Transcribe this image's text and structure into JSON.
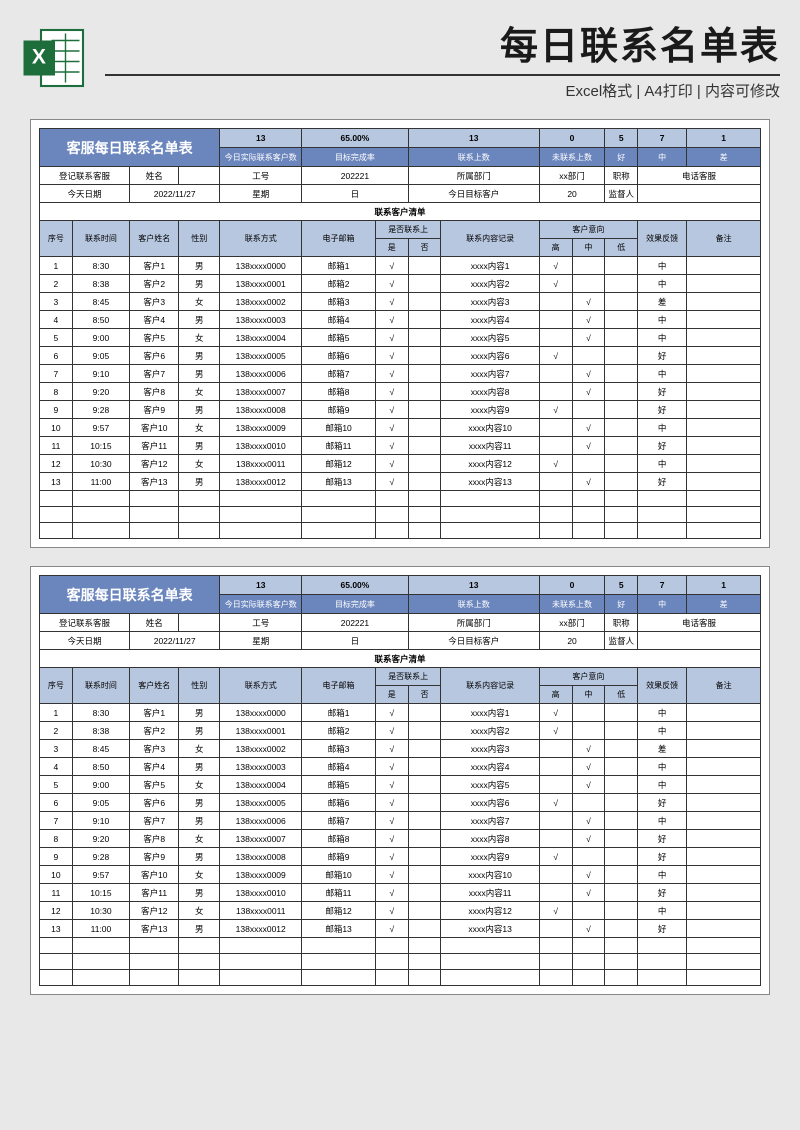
{
  "banner": {
    "title": "每日联系名单表",
    "subtitle": "Excel格式 | A4打印 | 内容可修改"
  },
  "colors": {
    "header_bg": "#6b85bd",
    "sub_bg": "#b8c7e0",
    "border": "#333333",
    "page_bg": "#e8e8e8"
  },
  "sheet": {
    "title": "客服每日联系名单表",
    "stats": {
      "actual_contact_val": "13",
      "actual_contact_lbl": "今日实际联系客户数",
      "completion_val": "65.00%",
      "completion_lbl": "目标完成率",
      "contacted_val": "13",
      "contacted_lbl": "联系上数",
      "not_contacted_val": "0",
      "not_contacted_lbl": "未联系上数",
      "good_val": "5",
      "good_lbl": "好",
      "mid_val": "7",
      "mid_lbl": "中",
      "bad_val": "1",
      "bad_lbl": "差"
    },
    "info": {
      "register_lbl": "登记联系客服",
      "name_lbl": "姓名",
      "name_val": "",
      "id_lbl": "工号",
      "id_val": "202221",
      "dept_lbl": "所属部门",
      "dept_val": "xx部门",
      "pos_lbl": "职称",
      "pos_val": "电话客服",
      "date_lbl": "今天日期",
      "date_val": "2022/11/27",
      "week_lbl": "星期",
      "week_val": "日",
      "target_lbl": "今日目标客户",
      "target_val": "20",
      "supervisor_lbl": "监督人",
      "supervisor_val": ""
    },
    "list_title": "联系客户清单",
    "columns": {
      "seq": "序号",
      "time": "联系时间",
      "cust": "客户姓名",
      "gender": "性别",
      "contact": "联系方式",
      "email": "电子邮箱",
      "connected": "是否联系上",
      "yes": "是",
      "no": "否",
      "content": "联系内容记录",
      "intent": "客户意向",
      "high": "高",
      "mid": "中",
      "low": "低",
      "feedback": "效果反馈",
      "remark": "备注"
    },
    "rows": [
      {
        "seq": "1",
        "time": "8:30",
        "cust": "客户1",
        "gender": "男",
        "contact": "138xxxx0000",
        "email": "邮箱1",
        "yes": "√",
        "no": "",
        "content": "xxxx内容1",
        "h": "√",
        "m": "",
        "l": "",
        "fb": "中",
        "rm": ""
      },
      {
        "seq": "2",
        "time": "8:38",
        "cust": "客户2",
        "gender": "男",
        "contact": "138xxxx0001",
        "email": "邮箱2",
        "yes": "√",
        "no": "",
        "content": "xxxx内容2",
        "h": "√",
        "m": "",
        "l": "",
        "fb": "中",
        "rm": ""
      },
      {
        "seq": "3",
        "time": "8:45",
        "cust": "客户3",
        "gender": "女",
        "contact": "138xxxx0002",
        "email": "邮箱3",
        "yes": "√",
        "no": "",
        "content": "xxxx内容3",
        "h": "",
        "m": "√",
        "l": "",
        "fb": "差",
        "rm": ""
      },
      {
        "seq": "4",
        "time": "8:50",
        "cust": "客户4",
        "gender": "男",
        "contact": "138xxxx0003",
        "email": "邮箱4",
        "yes": "√",
        "no": "",
        "content": "xxxx内容4",
        "h": "",
        "m": "√",
        "l": "",
        "fb": "中",
        "rm": ""
      },
      {
        "seq": "5",
        "time": "9:00",
        "cust": "客户5",
        "gender": "女",
        "contact": "138xxxx0004",
        "email": "邮箱5",
        "yes": "√",
        "no": "",
        "content": "xxxx内容5",
        "h": "",
        "m": "√",
        "l": "",
        "fb": "中",
        "rm": ""
      },
      {
        "seq": "6",
        "time": "9:05",
        "cust": "客户6",
        "gender": "男",
        "contact": "138xxxx0005",
        "email": "邮箱6",
        "yes": "√",
        "no": "",
        "content": "xxxx内容6",
        "h": "√",
        "m": "",
        "l": "",
        "fb": "好",
        "rm": ""
      },
      {
        "seq": "7",
        "time": "9:10",
        "cust": "客户7",
        "gender": "男",
        "contact": "138xxxx0006",
        "email": "邮箱7",
        "yes": "√",
        "no": "",
        "content": "xxxx内容7",
        "h": "",
        "m": "√",
        "l": "",
        "fb": "中",
        "rm": ""
      },
      {
        "seq": "8",
        "time": "9:20",
        "cust": "客户8",
        "gender": "女",
        "contact": "138xxxx0007",
        "email": "邮箱8",
        "yes": "√",
        "no": "",
        "content": "xxxx内容8",
        "h": "",
        "m": "√",
        "l": "",
        "fb": "好",
        "rm": ""
      },
      {
        "seq": "9",
        "time": "9:28",
        "cust": "客户9",
        "gender": "男",
        "contact": "138xxxx0008",
        "email": "邮箱9",
        "yes": "√",
        "no": "",
        "content": "xxxx内容9",
        "h": "√",
        "m": "",
        "l": "",
        "fb": "好",
        "rm": ""
      },
      {
        "seq": "10",
        "time": "9:57",
        "cust": "客户10",
        "gender": "女",
        "contact": "138xxxx0009",
        "email": "邮箱10",
        "yes": "√",
        "no": "",
        "content": "xxxx内容10",
        "h": "",
        "m": "√",
        "l": "",
        "fb": "中",
        "rm": ""
      },
      {
        "seq": "11",
        "time": "10:15",
        "cust": "客户11",
        "gender": "男",
        "contact": "138xxxx0010",
        "email": "邮箱11",
        "yes": "√",
        "no": "",
        "content": "xxxx内容11",
        "h": "",
        "m": "√",
        "l": "",
        "fb": "好",
        "rm": ""
      },
      {
        "seq": "12",
        "time": "10:30",
        "cust": "客户12",
        "gender": "女",
        "contact": "138xxxx0011",
        "email": "邮箱12",
        "yes": "√",
        "no": "",
        "content": "xxxx内容12",
        "h": "√",
        "m": "",
        "l": "",
        "fb": "中",
        "rm": ""
      },
      {
        "seq": "13",
        "time": "11:00",
        "cust": "客户13",
        "gender": "男",
        "contact": "138xxxx0012",
        "email": "邮箱13",
        "yes": "√",
        "no": "",
        "content": "xxxx内容13",
        "h": "",
        "m": "√",
        "l": "",
        "fb": "好",
        "rm": ""
      }
    ],
    "empty_rows": 3
  }
}
